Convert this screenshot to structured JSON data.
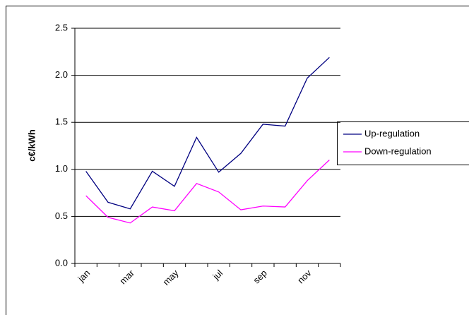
{
  "chart_data": {
    "type": "line",
    "y_label": "c€/kWh",
    "categories": [
      "jan",
      null,
      "mar",
      null,
      "may",
      null,
      "jul",
      null,
      "sep",
      null,
      "nov",
      null
    ],
    "series": [
      {
        "name": "Up-regulation",
        "color": "#000080",
        "values": [
          0.98,
          0.65,
          0.58,
          0.98,
          0.82,
          1.34,
          0.97,
          1.17,
          1.48,
          1.46,
          1.97,
          2.19
        ]
      },
      {
        "name": "Down-regulation",
        "color": "#ff00ff",
        "values": [
          0.72,
          0.49,
          0.43,
          0.6,
          0.56,
          0.85,
          0.76,
          0.57,
          0.61,
          0.6,
          0.88,
          1.1
        ]
      }
    ],
    "ylim": [
      0,
      2.5
    ],
    "yticks": [
      {
        "value": 0,
        "label": "0.0"
      },
      0.5,
      {
        "value": 1,
        "label": "1.0"
      },
      1.5,
      {
        "value": 2,
        "label": "2.0"
      },
      2.5
    ],
    "grid": true
  }
}
